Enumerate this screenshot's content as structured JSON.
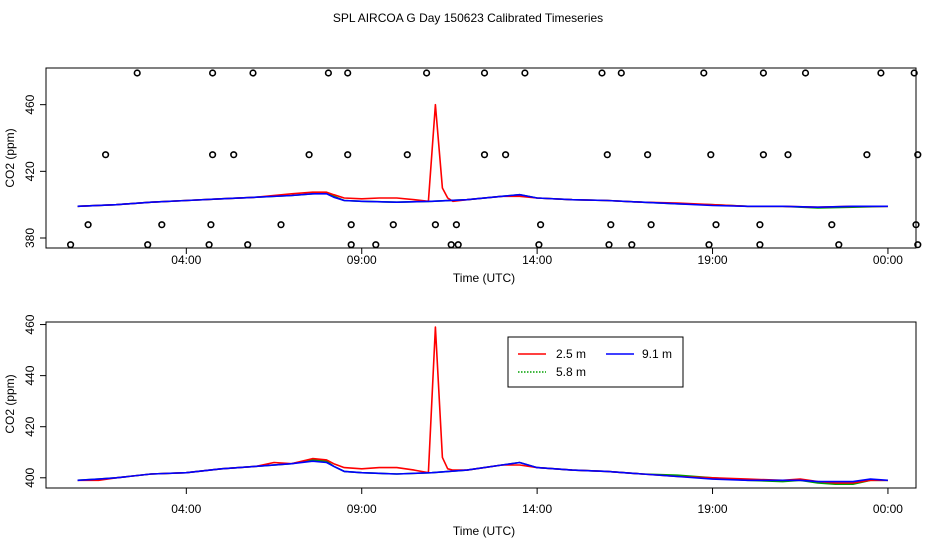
{
  "title": "SPL AIRCOA G  Day 150623  Calibrated Timeseries",
  "colors": {
    "s25": "#ff0000",
    "s58": "#00a000",
    "s91": "#0000ff",
    "frame": "#000000",
    "marker": "#000000"
  },
  "chart_data": [
    {
      "type": "line",
      "name": "top-panel",
      "xlabel": "Time (UTC)",
      "ylabel": "CO2 (ppm)",
      "xlim": [
        0.0,
        24.8
      ],
      "ylim": [
        374,
        482
      ],
      "xticks": [
        4,
        9,
        14,
        19,
        24
      ],
      "xtick_labels": [
        "04:00",
        "09:00",
        "14:00",
        "19:00",
        "00:00"
      ],
      "yticks": [
        380,
        420,
        460
      ],
      "ytick_labels": [
        "380",
        "420",
        "460"
      ],
      "series": [
        {
          "name": "2.5 m",
          "color": "#ff0000",
          "x": [
            0.9,
            2,
            3,
            4,
            5,
            6,
            7,
            7.6,
            8,
            8.2,
            8.5,
            9,
            9.5,
            10,
            10.5,
            10.9,
            11.1,
            11.3,
            11.45,
            11.6,
            12,
            12.5,
            13,
            13.5,
            14,
            15,
            16,
            17,
            18,
            19,
            20,
            21,
            22,
            23,
            24
          ],
          "y": [
            399,
            400,
            401.5,
            402.5,
            403.5,
            404.5,
            406.5,
            407.5,
            407.5,
            406,
            404,
            403.5,
            404,
            404,
            403,
            402,
            460,
            410,
            404,
            402,
            403,
            404,
            405,
            405,
            404,
            403,
            402.5,
            401.5,
            401,
            400,
            399,
            399,
            398.5,
            399,
            399
          ]
        },
        {
          "name": "5.8 m",
          "color": "#00a000",
          "x": [
            0.9,
            2,
            3,
            4,
            5,
            6,
            7,
            7.6,
            8,
            8.2,
            8.5,
            9,
            10,
            11,
            12,
            13,
            13.5,
            14,
            15,
            16,
            17,
            18,
            19,
            20,
            21,
            22,
            23,
            24
          ],
          "y": [
            399,
            400,
            401.5,
            402.5,
            403.5,
            404.5,
            405.5,
            406.5,
            407,
            405,
            402.5,
            402,
            401.5,
            402,
            403,
            405,
            406,
            404,
            403,
            402.5,
            401.5,
            400.5,
            400,
            399,
            399,
            398,
            398.5,
            399
          ]
        },
        {
          "name": "9.1 m",
          "color": "#0000ff",
          "x": [
            0.9,
            2,
            3,
            4,
            5,
            6,
            7,
            7.6,
            8,
            8.2,
            8.5,
            9,
            10,
            11,
            12,
            13,
            13.5,
            14,
            15,
            16,
            17,
            18,
            19,
            20,
            21,
            22,
            23,
            24
          ],
          "y": [
            399,
            400,
            401.5,
            402.5,
            403.5,
            404.5,
            405.5,
            406.5,
            406.5,
            404.5,
            402.5,
            402,
            401.5,
            402,
            403,
            405,
            406,
            404,
            403,
            402.5,
            401.5,
            400.5,
            399.5,
            399,
            399,
            398.5,
            399,
            399
          ]
        }
      ],
      "markers": {
        "symbol": "open-circle",
        "x": [
          2.6,
          4.75,
          5.9,
          8.05,
          8.6,
          10.85,
          12.5,
          13.65,
          15.85,
          16.4,
          18.75,
          20.45,
          21.65,
          23.8,
          24.75,
          1.7,
          4.75,
          5.35,
          7.5,
          8.6,
          10.3,
          12.5,
          13.1,
          16.0,
          17.15,
          18.95,
          20.45,
          21.15,
          23.4,
          24.85,
          1.2,
          3.3,
          4.7,
          6.7,
          8.7,
          9.9,
          11.1,
          11.7,
          14.1,
          16.1,
          17.25,
          19.1,
          20.35,
          22.4,
          24.8,
          0.7,
          2.9,
          4.65,
          5.75,
          8.7,
          9.4,
          11.55,
          11.75,
          14.05,
          16.05,
          16.7,
          18.9,
          20.35,
          22.6,
          24.85
        ],
        "y": [
          479,
          479,
          479,
          479,
          479,
          479,
          479,
          479,
          479,
          479,
          479,
          479,
          479,
          479,
          479,
          430,
          430,
          430,
          430,
          430,
          430,
          430,
          430,
          430,
          430,
          430,
          430,
          430,
          430,
          430,
          388,
          388,
          388,
          388,
          388,
          388,
          388,
          388,
          388,
          388,
          388,
          388,
          388,
          388,
          388,
          376,
          376,
          376,
          376,
          376,
          376,
          376,
          376,
          376,
          376,
          376,
          376,
          376,
          376,
          376
        ]
      }
    },
    {
      "type": "line",
      "name": "bottom-panel",
      "xlabel": "Time (UTC)",
      "ylabel": "CO2 (ppm)",
      "xlim": [
        0.0,
        24.8
      ],
      "ylim": [
        396,
        461
      ],
      "xticks": [
        4,
        9,
        14,
        19,
        24
      ],
      "xtick_labels": [
        "04:00",
        "09:00",
        "14:00",
        "19:00",
        "00:00"
      ],
      "yticks": [
        400,
        420,
        440,
        460
      ],
      "ytick_labels": [
        "400",
        "420",
        "440",
        "460"
      ],
      "legend": {
        "placement": "top-center",
        "entries": [
          "2.5 m",
          "9.1 m",
          "5.8 m"
        ]
      },
      "series": [
        {
          "name": "2.5 m",
          "color": "#ff0000",
          "x": [
            0.9,
            1.5,
            2,
            3,
            4,
            5,
            6,
            6.5,
            7,
            7.6,
            8,
            8.2,
            8.5,
            9,
            9.5,
            10,
            10.5,
            10.9,
            11.1,
            11.3,
            11.45,
            11.6,
            12,
            12.5,
            13,
            13.5,
            14,
            15,
            16,
            17,
            18,
            19,
            20,
            21,
            21.5,
            22,
            22.5,
            23,
            23.5,
            24
          ],
          "y": [
            399,
            399,
            400,
            401.5,
            402,
            403.5,
            404.5,
            406,
            405.5,
            407.5,
            407,
            405.5,
            404,
            403.5,
            404,
            404,
            403,
            402,
            459,
            408,
            403.5,
            403,
            403,
            404,
            405,
            405,
            404,
            403,
            402.5,
            401.5,
            400.5,
            400,
            399.5,
            399,
            399.5,
            398.5,
            398,
            398,
            399,
            399
          ]
        },
        {
          "name": "5.8 m",
          "color": "#00a000",
          "x": [
            0.9,
            1.5,
            2,
            3,
            4,
            5,
            6,
            7,
            7.6,
            8,
            8.2,
            8.5,
            9,
            10,
            11,
            12,
            13,
            13.5,
            14,
            15,
            16,
            17,
            18,
            19,
            20,
            21,
            21.5,
            22,
            22.5,
            23,
            23.5,
            24
          ],
          "y": [
            399,
            399.5,
            400,
            401.5,
            402,
            403.5,
            404.5,
            405.5,
            407,
            406.5,
            404.5,
            402.5,
            402,
            401.5,
            402,
            403,
            405,
            406,
            404,
            403,
            402.5,
            401.5,
            401,
            400,
            399,
            398.5,
            399,
            398,
            397.5,
            397.5,
            399,
            399
          ]
        },
        {
          "name": "9.1 m",
          "color": "#0000ff",
          "x": [
            0.9,
            1.5,
            2,
            3,
            4,
            5,
            6,
            7,
            7.6,
            8,
            8.2,
            8.5,
            9,
            10,
            11,
            12,
            13,
            13.5,
            14,
            15,
            16,
            17,
            18,
            19,
            20,
            21,
            21.5,
            22,
            22.5,
            23,
            23.5,
            24
          ],
          "y": [
            399,
            399.5,
            400,
            401.5,
            402,
            403.5,
            404.5,
            405.5,
            406.5,
            406,
            404.5,
            402.5,
            402,
            401.5,
            402,
            403,
            405,
            406,
            404,
            403,
            402.5,
            401.5,
            400.5,
            399.5,
            399,
            399,
            399,
            398.5,
            398.5,
            398.5,
            399.5,
            399
          ]
        }
      ]
    }
  ]
}
